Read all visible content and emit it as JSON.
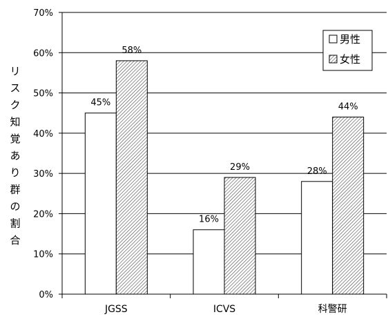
{
  "chart_data": {
    "type": "bar",
    "title": "",
    "xlabel": "",
    "ylabel": "リスク知覚あり群の割合",
    "ylim": [
      0,
      70
    ],
    "y_ticks": [
      "0%",
      "10%",
      "20%",
      "30%",
      "40%",
      "50%",
      "60%",
      "70%"
    ],
    "grid": true,
    "legend_position": "top-right",
    "categories": [
      "JGSS",
      "ICVS",
      "科警研"
    ],
    "series": [
      {
        "name": "男性",
        "values": [
          45,
          16,
          28
        ],
        "labels": [
          "45%",
          "16%",
          "28%"
        ],
        "fill": "#ffffff",
        "pattern": "none"
      },
      {
        "name": "女性",
        "values": [
          58,
          29,
          44
        ],
        "labels": [
          "58%",
          "29%",
          "44%"
        ],
        "fill": "#ffffff",
        "pattern": "diagonal-hatch"
      }
    ]
  }
}
